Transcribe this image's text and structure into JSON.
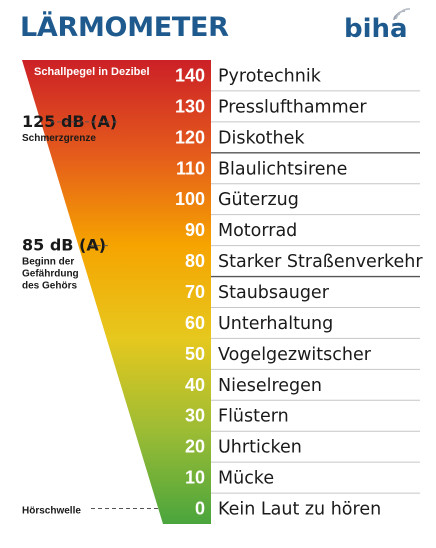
{
  "header": {
    "title": "LÄRMOMETER",
    "brand": "biha",
    "brand_icon": "sound-waves-icon"
  },
  "gradient": {
    "label": "Schallpegel in Dezibel",
    "colors": [
      "#cc2027",
      "#e45a1c",
      "#f6a400",
      "#e6c81e",
      "#9cbc34",
      "#4aa53d"
    ]
  },
  "levels": [
    {
      "db": "140",
      "source": "Pyrotechnik"
    },
    {
      "db": "130",
      "source": "Presslufthammer"
    },
    {
      "db": "120",
      "source": "Diskothek"
    },
    {
      "db": "110",
      "source": "Blaulichtsirene"
    },
    {
      "db": "100",
      "source": "Güterzug"
    },
    {
      "db": "90",
      "source": "Motorrad"
    },
    {
      "db": "80",
      "source": "Starker Straßenverkehr"
    },
    {
      "db": "70",
      "source": "Staubsauger"
    },
    {
      "db": "60",
      "source": "Unterhaltung"
    },
    {
      "db": "50",
      "source": "Vogelgezwitscher"
    },
    {
      "db": "40",
      "source": "Nieselregen"
    },
    {
      "db": "30",
      "source": "Flüstern"
    },
    {
      "db": "20",
      "source": "Uhrticken"
    },
    {
      "db": "10",
      "source": "Mücke"
    },
    {
      "db": "0",
      "source": "Kein Laut zu hören"
    }
  ],
  "markers": [
    {
      "value": "125 dB (A)",
      "lines": [
        "Schmerzgrenze"
      ],
      "db": 125,
      "big": true
    },
    {
      "value": "85 dB (A)",
      "lines": [
        "Beginn der",
        "Gefährdung",
        "des Gehörs"
      ],
      "db": 85,
      "big": true
    },
    {
      "value": "Hörschwelle",
      "lines": [],
      "db": 0,
      "big": false
    }
  ],
  "threshold_lines_after_db": [
    120,
    80
  ]
}
